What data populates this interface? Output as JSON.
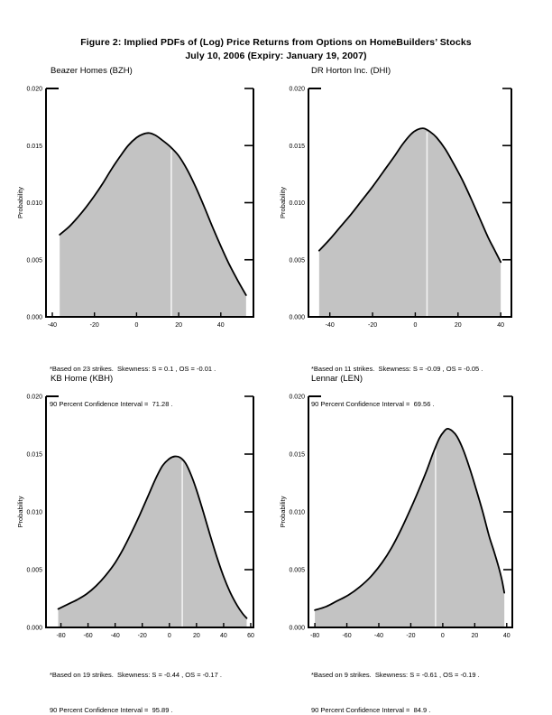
{
  "figure": {
    "title_line1": "Figure 2: Implied PDFs of (Log) Price Returns from Options on HomeBuilders’ Stocks",
    "title_line2": "July 10, 2006 (Expiry: January 19, 2007)"
  },
  "chart_data": [
    {
      "type": "area",
      "name": "BZH",
      "title": "Beazer Homes (BZH)",
      "xlabel": "",
      "ylabel": "Probability",
      "xlim": [
        -43,
        55.5
      ],
      "ylim": [
        0,
        0.02
      ],
      "xticks": [
        -40,
        -20,
        0,
        20,
        40
      ],
      "yticks": [
        0,
        0.005,
        0.01,
        0.015,
        0.02
      ],
      "ytick_labels": [
        "0.000",
        "0.005",
        "0.010",
        "0.015",
        "0.020"
      ],
      "grid": false,
      "legend": "none",
      "vline_x": 16.5,
      "fill_color": "#c3c3c3",
      "line_color": "#000000",
      "vline_color": "#f2f2f2",
      "points": [
        [
          -36.5,
          0.0072
        ],
        [
          -32,
          0.0079
        ],
        [
          -28,
          0.0087
        ],
        [
          -24,
          0.0096
        ],
        [
          -20,
          0.0106
        ],
        [
          -16,
          0.0117
        ],
        [
          -12,
          0.0129
        ],
        [
          -8,
          0.014
        ],
        [
          -4,
          0.015
        ],
        [
          0,
          0.0157
        ],
        [
          3,
          0.016
        ],
        [
          6,
          0.0161
        ],
        [
          9,
          0.0159
        ],
        [
          12,
          0.0155
        ],
        [
          16,
          0.0149
        ],
        [
          20,
          0.0141
        ],
        [
          24,
          0.0129
        ],
        [
          28,
          0.0114
        ],
        [
          32,
          0.0097
        ],
        [
          36,
          0.0079
        ],
        [
          40,
          0.0062
        ],
        [
          44,
          0.0046
        ],
        [
          48,
          0.0032
        ],
        [
          52,
          0.0019
        ]
      ],
      "footnote_line1": "*Based on 23 strikes.  Skewness: S = 0.1 , OS = -0.01 .",
      "footnote_line2": "90 Percent Confidence Interval =  71.28 ."
    },
    {
      "type": "area",
      "name": "DHI",
      "title": "DR Horton Inc. (DHI)",
      "xlabel": "",
      "ylabel": "Probability",
      "xlim": [
        -50,
        45
      ],
      "ylim": [
        0,
        0.02
      ],
      "xticks": [
        -40,
        -20,
        0,
        20,
        40
      ],
      "yticks": [
        0,
        0.005,
        0.01,
        0.015,
        0.02
      ],
      "ytick_labels": [
        "0.000",
        "0.005",
        "0.010",
        "0.015",
        "0.020"
      ],
      "grid": false,
      "legend": "none",
      "vline_x": 5.5,
      "fill_color": "#c3c3c3",
      "line_color": "#000000",
      "vline_color": "#f2f2f2",
      "points": [
        [
          -45,
          0.0058
        ],
        [
          -40,
          0.0068
        ],
        [
          -35,
          0.0079
        ],
        [
          -30,
          0.009
        ],
        [
          -25,
          0.0102
        ],
        [
          -20,
          0.0114
        ],
        [
          -15,
          0.0127
        ],
        [
          -10,
          0.014
        ],
        [
          -6,
          0.0151
        ],
        [
          -2,
          0.016
        ],
        [
          1,
          0.0164
        ],
        [
          4,
          0.0165
        ],
        [
          7,
          0.0162
        ],
        [
          10,
          0.0157
        ],
        [
          14,
          0.0147
        ],
        [
          18,
          0.0134
        ],
        [
          22,
          0.012
        ],
        [
          26,
          0.0104
        ],
        [
          30,
          0.0087
        ],
        [
          34,
          0.007
        ],
        [
          37,
          0.0059
        ],
        [
          40,
          0.0048
        ]
      ],
      "footnote_line1": "*Based on 11 strikes.  Skewness: S = -0.09 , OS = -0.05 .",
      "footnote_line2": "90 Percent Confidence Interval =  69.56 ."
    },
    {
      "type": "area",
      "name": "KBH",
      "title": "KB Home (KBH)",
      "xlabel": "",
      "ylabel": "Probability",
      "xlim": [
        -91,
        62
      ],
      "ylim": [
        0,
        0.02
      ],
      "xticks": [
        -80,
        -60,
        -40,
        -20,
        0,
        20,
        40,
        60
      ],
      "yticks": [
        0,
        0.005,
        0.01,
        0.015,
        0.02
      ],
      "ytick_labels": [
        "0.000",
        "0.005",
        "0.010",
        "0.015",
        "0.020"
      ],
      "grid": false,
      "legend": "none",
      "vline_x": 9.5,
      "fill_color": "#c3c3c3",
      "line_color": "#000000",
      "vline_color": "#f2f2f2",
      "points": [
        [
          -82,
          0.0016
        ],
        [
          -75,
          0.002
        ],
        [
          -68,
          0.0024
        ],
        [
          -61,
          0.0029
        ],
        [
          -54,
          0.0036
        ],
        [
          -47,
          0.0045
        ],
        [
          -40,
          0.0056
        ],
        [
          -34,
          0.0068
        ],
        [
          -28,
          0.0082
        ],
        [
          -22,
          0.0097
        ],
        [
          -16,
          0.0113
        ],
        [
          -10,
          0.0129
        ],
        [
          -5,
          0.014
        ],
        [
          0,
          0.0146
        ],
        [
          4,
          0.0148
        ],
        [
          8,
          0.0147
        ],
        [
          12,
          0.0142
        ],
        [
          16,
          0.0132
        ],
        [
          20,
          0.0119
        ],
        [
          25,
          0.01
        ],
        [
          30,
          0.008
        ],
        [
          35,
          0.0061
        ],
        [
          40,
          0.0044
        ],
        [
          45,
          0.003
        ],
        [
          50,
          0.0019
        ],
        [
          54,
          0.0012
        ],
        [
          57,
          0.0008
        ]
      ],
      "footnote_line1": "*Based on 19 strikes.  Skewness: S = -0.44 , OS = -0.17 .",
      "footnote_line2": "90 Percent Confidence Interval =  95.89 ."
    },
    {
      "type": "area",
      "name": "LEN",
      "title": "Lennar (LEN)",
      "xlabel": "",
      "ylabel": "Probability",
      "xlim": [
        -84,
        43.5
      ],
      "ylim": [
        0,
        0.02
      ],
      "xticks": [
        -80,
        -60,
        -40,
        -20,
        0,
        20,
        40
      ],
      "yticks": [
        0,
        0.005,
        0.01,
        0.015,
        0.02
      ],
      "ytick_labels": [
        "0.000",
        "0.005",
        "0.010",
        "0.015",
        "0.020"
      ],
      "grid": false,
      "legend": "none",
      "vline_x": -4.5,
      "fill_color": "#c3c3c3",
      "line_color": "#000000",
      "vline_color": "#f2f2f2",
      "points": [
        [
          -80,
          0.0015
        ],
        [
          -73,
          0.0018
        ],
        [
          -66,
          0.0023
        ],
        [
          -59,
          0.0028
        ],
        [
          -52,
          0.0035
        ],
        [
          -45,
          0.0044
        ],
        [
          -38,
          0.0056
        ],
        [
          -32,
          0.0069
        ],
        [
          -26,
          0.0085
        ],
        [
          -20,
          0.0103
        ],
        [
          -15,
          0.0119
        ],
        [
          -10,
          0.0136
        ],
        [
          -6,
          0.0151
        ],
        [
          -2,
          0.0164
        ],
        [
          1,
          0.017
        ],
        [
          3,
          0.0172
        ],
        [
          6,
          0.017
        ],
        [
          9,
          0.0165
        ],
        [
          13,
          0.0153
        ],
        [
          17,
          0.0137
        ],
        [
          21,
          0.0119
        ],
        [
          25,
          0.01
        ],
        [
          29,
          0.0079
        ],
        [
          32,
          0.0066
        ],
        [
          35,
          0.0052
        ],
        [
          37,
          0.0041
        ],
        [
          38.5,
          0.003
        ]
      ],
      "footnote_line1": "*Based on 9 strikes.  Skewness: S = -0.61 , OS = -0.19 .",
      "footnote_line2": "90 Percent Confidence Interval =  84.9 ."
    }
  ]
}
